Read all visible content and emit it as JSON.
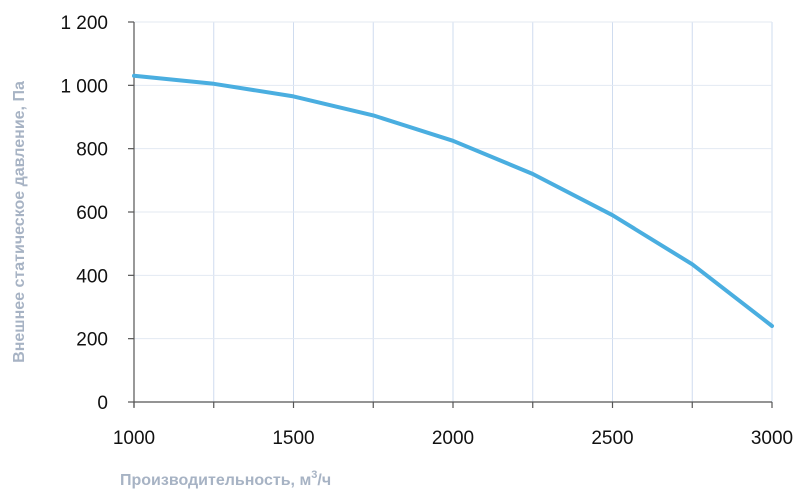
{
  "chart_data": {
    "type": "line",
    "title": "",
    "xlabel": "Производительность, м³/ч",
    "xlabel_main": "Производительность, м",
    "xlabel_sup": "3",
    "xlabel_tail": "/ч",
    "ylabel": "Внешнее статическое давление, Па",
    "xlim": [
      1000,
      3000
    ],
    "ylim": [
      0,
      1200
    ],
    "x_ticks": [
      1000,
      1500,
      2000,
      2500,
      3000
    ],
    "x_tick_labels": [
      "1000",
      "1500",
      "2000",
      "2500",
      "3000"
    ],
    "y_ticks": [
      0,
      200,
      400,
      600,
      800,
      1000,
      1200
    ],
    "y_tick_labels": [
      "0",
      "200",
      "400",
      "600",
      "800",
      "1 000",
      "1 200"
    ],
    "grid": true,
    "legend": "none",
    "series": [
      {
        "color": "#4aaee0",
        "x": [
          1000,
          1250,
          1500,
          1750,
          2000,
          2250,
          2500,
          2750,
          3000
        ],
        "y": [
          1030,
          1005,
          965,
          905,
          825,
          720,
          590,
          435,
          240
        ]
      }
    ]
  }
}
